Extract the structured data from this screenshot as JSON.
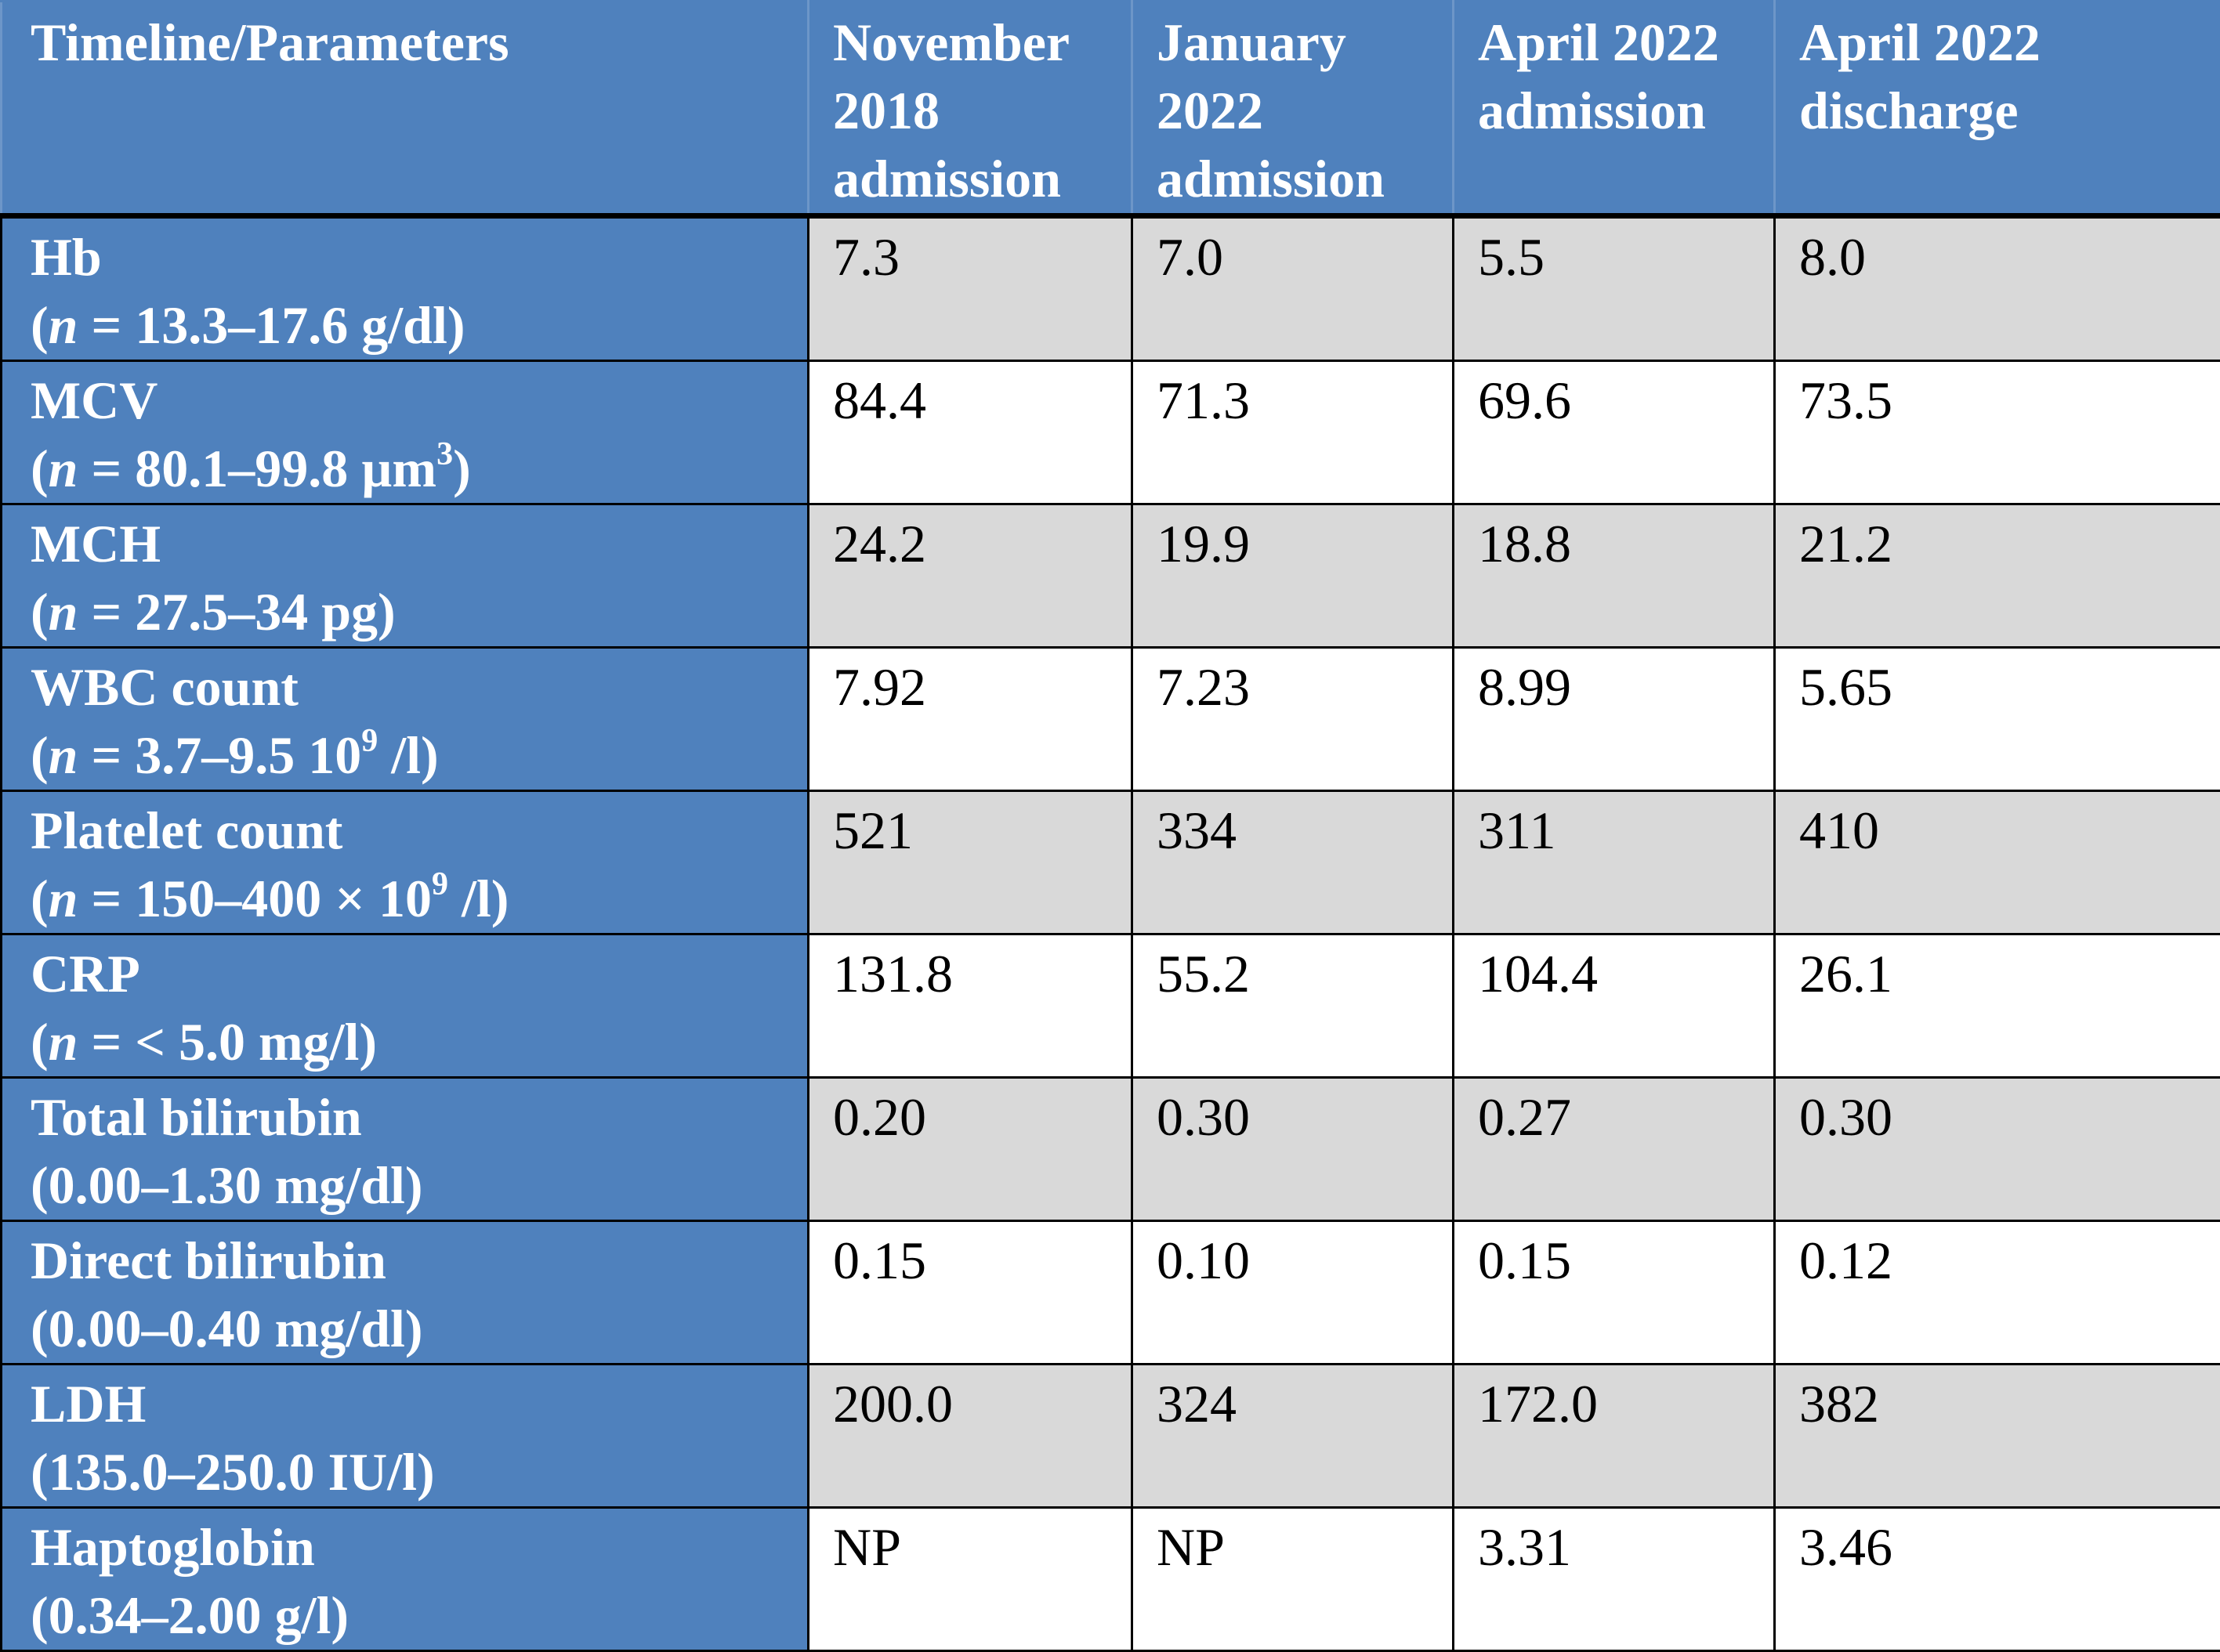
{
  "table": {
    "headers": [
      [
        "Timeline/Parameters"
      ],
      [
        "November",
        "2018",
        "admission"
      ],
      [
        "January",
        "2022",
        "admission"
      ],
      [
        "April 2022",
        "admission"
      ],
      [
        "April 2022",
        "discharge"
      ]
    ],
    "rows": [
      {
        "name": "Hb",
        "range_prefix": "(",
        "range_n": "n",
        "range_text": " = 13.3–17.6 g/dl)",
        "values": [
          "7.3",
          "7.0",
          "5.5",
          "8.0"
        ]
      },
      {
        "name": "MCV",
        "range_prefix": "(",
        "range_n": "n",
        "range_text": " = 80.1–99.8 µm",
        "range_sup": "3",
        "range_suffix": ")",
        "values": [
          "84.4",
          "71.3",
          "69.6",
          "73.5"
        ]
      },
      {
        "name": "MCH",
        "range_prefix": "(",
        "range_n": "n",
        "range_text": " = 27.5–34 pg)",
        "values": [
          "24.2",
          "19.9",
          "18.8",
          "21.2"
        ]
      },
      {
        "name": "WBC count",
        "range_prefix": "(",
        "range_n": "n",
        "range_text": " = 3.7–9.5 10",
        "range_sup": "9",
        "range_suffix": " /l)",
        "values": [
          "7.92",
          "7.23",
          "8.99",
          "5.65"
        ]
      },
      {
        "name": "Platelet count",
        "range_prefix": "(",
        "range_n": "n",
        "range_text": " = 150–400 × 10",
        "range_sup": "9",
        "range_suffix": " /l)",
        "values": [
          "521",
          "334",
          "311",
          "410"
        ]
      },
      {
        "name": "CRP",
        "range_prefix": "(",
        "range_n": "n",
        "range_text": " = < 5.0 mg/l)",
        "values": [
          "131.8",
          "55.2",
          "104.4",
          "26.1"
        ]
      },
      {
        "name": "Total bilirubin",
        "range_prefix": "",
        "range_n": "",
        "range_text": "(0.00–1.30 mg/dl)",
        "values": [
          "0.20",
          "0.30",
          "0.27",
          "0.30"
        ]
      },
      {
        "name": "Direct bilirubin",
        "range_prefix": "",
        "range_n": "",
        "range_text": "(0.00–0.40 mg/dl)",
        "values": [
          "0.15",
          "0.10",
          "0.15",
          "0.12"
        ]
      },
      {
        "name": "LDH",
        "range_prefix": "",
        "range_n": "",
        "range_text": "(135.0–250.0 IU/l)",
        "values": [
          "200.0",
          "324",
          "172.0",
          "382"
        ]
      },
      {
        "name": "Haptoglobin",
        "range_prefix": "",
        "range_n": "",
        "range_text": "(0.34–2.00 g/l)",
        "values": [
          "NP",
          "NP",
          "3.31",
          "3.46"
        ]
      }
    ]
  },
  "colors": {
    "header_bg": "#4f81bd",
    "param_bg": "#4f81bd",
    "shade_bg": "#d9d9d9",
    "plain_bg": "#ffffff",
    "border": "#000000"
  }
}
